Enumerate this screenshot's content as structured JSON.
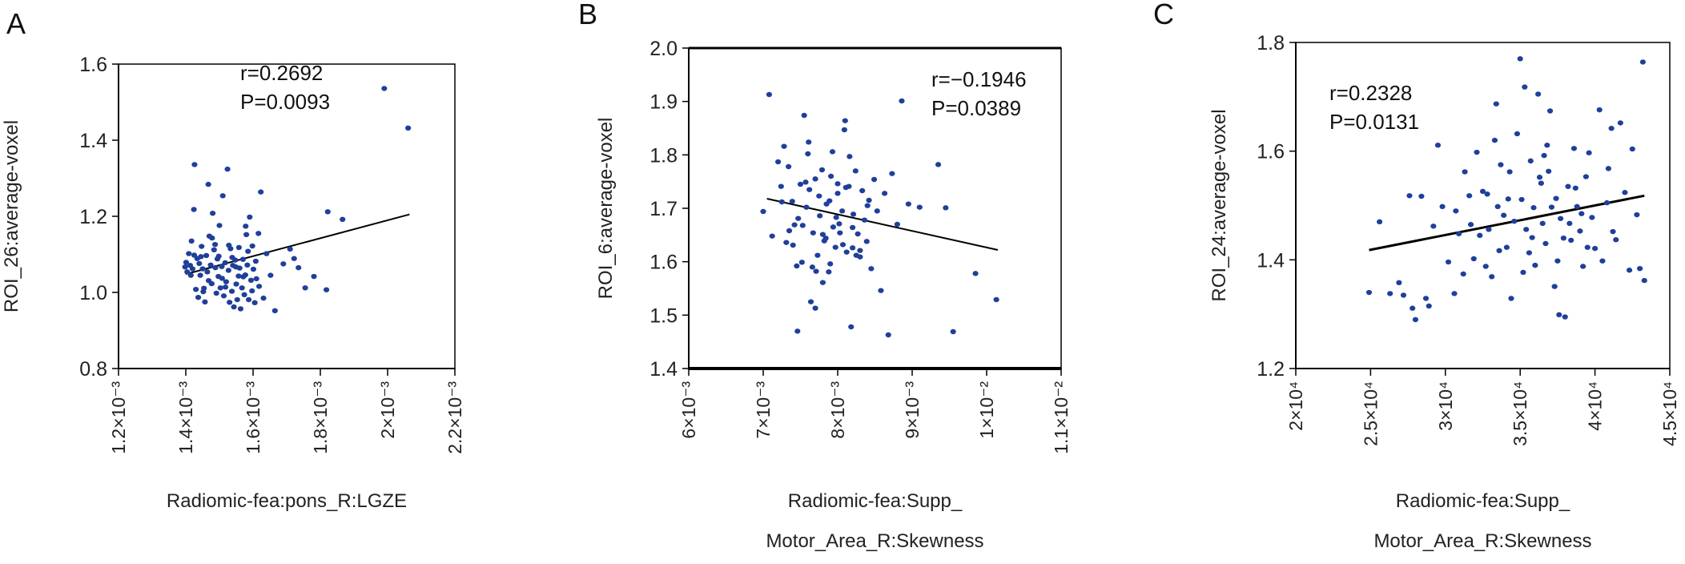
{
  "chart_data": [
    {
      "panel": "A",
      "type": "scatter",
      "ylabel": "ROI_26:average-voxel",
      "xlabel_lines": [
        "Radiomic-fea:pons_R:LGZE"
      ],
      "xlim": [
        0.0012,
        0.0022
      ],
      "ylim": [
        0.8,
        1.6
      ],
      "x_ticks": [
        0.0012,
        0.0014,
        0.0016,
        0.0018,
        0.002,
        0.0022
      ],
      "x_tick_labels": [
        "1.2×10⁻³",
        "1.4×10⁻³",
        "1.6×10⁻³",
        "1.8×10⁻³",
        "2×10⁻³",
        "2.2×10⁻³"
      ],
      "y_ticks": [
        0.8,
        1.0,
        1.2,
        1.4,
        1.6
      ],
      "y_tick_labels": [
        "0.8",
        "1.0",
        "1.2",
        "1.4",
        "1.6"
      ],
      "annotation": [
        "r=0.2692",
        "P=0.0093"
      ],
      "fit_line": [
        [
          0.0014,
          1.048
        ],
        [
          0.002065,
          1.205
        ]
      ],
      "points": [
        [
          0.001398,
          1.067
        ],
        [
          0.001401,
          1.079
        ],
        [
          0.001404,
          1.054
        ],
        [
          0.001409,
          1.102
        ],
        [
          0.001413,
          1.071
        ],
        [
          0.001417,
          1.135
        ],
        [
          0.00142,
          1.062
        ],
        [
          0.001424,
          1.218
        ],
        [
          0.001426,
          1.336
        ],
        [
          0.00143,
          1.008
        ],
        [
          0.001434,
          1.089
        ],
        [
          0.001437,
          0.987
        ],
        [
          0.00144,
          1.076
        ],
        [
          0.001443,
          1.045
        ],
        [
          0.001447,
          1.121
        ],
        [
          0.00145,
          1.062
        ],
        [
          0.001454,
          1.011
        ],
        [
          0.001457,
          0.975
        ],
        [
          0.001461,
          1.097
        ],
        [
          0.001464,
          1.054
        ],
        [
          0.001467,
          1.284
        ],
        [
          0.00147,
          1.148
        ],
        [
          0.001474,
          1.072
        ],
        [
          0.001477,
          1.023
        ],
        [
          0.00148,
          1.208
        ],
        [
          0.001484,
          1.112
        ],
        [
          0.001488,
          1.065
        ],
        [
          0.001491,
          0.998
        ],
        [
          0.001494,
          1.088
        ],
        [
          0.001497,
          1.042
        ],
        [
          0.0015,
          1.176
        ],
        [
          0.001503,
          1.012
        ],
        [
          0.001507,
          1.068
        ],
        [
          0.00151,
          1.254
        ],
        [
          0.001513,
          0.991
        ],
        [
          0.001517,
          1.078
        ],
        [
          0.00152,
          1.028
        ],
        [
          0.001524,
          1.324
        ],
        [
          0.001527,
          1.058
        ],
        [
          0.00153,
          0.974
        ],
        [
          0.001533,
          1.115
        ],
        [
          0.001537,
          1.003
        ],
        [
          0.00154,
          1.071
        ],
        [
          0.001543,
          0.962
        ],
        [
          0.001547,
          1.085
        ],
        [
          0.00155,
          1.022
        ],
        [
          0.001553,
          0.981
        ],
        [
          0.001557,
          1.043
        ],
        [
          0.00156,
          1.064
        ],
        [
          0.001563,
          0.957
        ],
        [
          0.001567,
          1.012
        ],
        [
          0.00157,
          1.087
        ],
        [
          0.001574,
          0.994
        ],
        [
          0.001577,
          1.046
        ],
        [
          0.00158,
          1.152
        ],
        [
          0.001583,
          1.072
        ],
        [
          0.001587,
          0.981
        ],
        [
          0.00159,
          1.198
        ],
        [
          0.001594,
          1.032
        ],
        [
          0.001597,
          1.004
        ],
        [
          0.001601,
          1.061
        ],
        [
          0.001605,
          0.973
        ],
        [
          0.00161,
          1.036
        ],
        [
          0.001616,
          1.155
        ],
        [
          0.001623,
          1.264
        ],
        [
          0.001631,
          0.985
        ],
        [
          0.00164,
          1.102
        ],
        [
          0.001652,
          1.045
        ],
        [
          0.001665,
          0.952
        ],
        [
          0.00169,
          1.075
        ],
        [
          0.00171,
          1.114
        ],
        [
          0.001722,
          1.089
        ],
        [
          0.001735,
          1.065
        ],
        [
          0.001755,
          1.012
        ],
        [
          0.001781,
          1.042
        ],
        [
          0.001818,
          1.007
        ],
        [
          0.001822,
          1.212
        ],
        [
          0.001866,
          1.192
        ],
        [
          0.00199,
          1.536
        ],
        [
          0.002061,
          1.432
        ],
        [
          0.001415,
          1.045
        ],
        [
          0.001445,
          1.094
        ],
        [
          0.001468,
          1.031
        ],
        [
          0.001487,
          1.126
        ],
        [
          0.001508,
          1.037
        ],
        [
          0.001528,
          1.124
        ],
        [
          0.001549,
          1.067
        ],
        [
          0.001571,
          1.041
        ],
        [
          0.001585,
          1.108
        ],
        [
          0.001608,
          1.082
        ],
        [
          0.001425,
          1.098
        ],
        [
          0.001452,
          1.002
        ],
        [
          0.001478,
          1.143
        ],
        [
          0.001498,
          1.095
        ],
        [
          0.001518,
          1.014
        ],
        [
          0.001538,
          1.092
        ],
        [
          0.001558,
          1.118
        ],
        [
          0.001578,
          1.174
        ],
        [
          0.001598,
          1.122
        ],
        [
          0.001618,
          1.016
        ]
      ]
    },
    {
      "panel": "B",
      "type": "scatter",
      "ylabel": "ROI_6:average-voxel",
      "xlabel_lines": [
        "Radiomic-fea:Supp_",
        "Motor_Area_R:Skewness"
      ],
      "xlim": [
        0.006,
        0.011
      ],
      "ylim": [
        1.4,
        2.0
      ],
      "x_ticks": [
        0.006,
        0.007,
        0.008,
        0.009,
        0.01,
        0.011
      ],
      "x_tick_labels": [
        "6×10⁻³",
        "7×10⁻³",
        "8×10⁻³",
        "9×10⁻³",
        "1×10⁻²",
        "1.1×10⁻²"
      ],
      "y_ticks": [
        1.4,
        1.5,
        1.6,
        1.7,
        1.8,
        1.9,
        2.0
      ],
      "y_tick_labels": [
        "1.4",
        "1.5",
        "1.6",
        "1.7",
        "1.8",
        "1.9",
        "2.0"
      ],
      "annotation": [
        "r=−0.1946",
        "P=0.0389"
      ],
      "fit_line": [
        [
          0.00705,
          1.718
        ],
        [
          0.01015,
          1.622
        ]
      ],
      "points": [
        [
          0.007,
          1.694
        ],
        [
          0.00708,
          1.913
        ],
        [
          0.00712,
          1.648
        ],
        [
          0.0072,
          1.787
        ],
        [
          0.00724,
          1.741
        ],
        [
          0.00728,
          1.816
        ],
        [
          0.00731,
          1.636
        ],
        [
          0.00735,
          1.658
        ],
        [
          0.00739,
          1.713
        ],
        [
          0.00742,
          1.669
        ],
        [
          0.00746,
          1.47
        ],
        [
          0.0075,
          1.745
        ],
        [
          0.00752,
          1.599
        ],
        [
          0.00755,
          1.874
        ],
        [
          0.00758,
          1.702
        ],
        [
          0.00761,
          1.824
        ],
        [
          0.00764,
          1.525
        ],
        [
          0.00767,
          1.654
        ],
        [
          0.0077,
          1.755
        ],
        [
          0.00773,
          1.612
        ],
        [
          0.00776,
          1.686
        ],
        [
          0.00779,
          1.772
        ],
        [
          0.00782,
          1.639
        ],
        [
          0.00785,
          1.708
        ],
        [
          0.00788,
          1.581
        ],
        [
          0.00791,
          1.76
        ],
        [
          0.00794,
          1.665
        ],
        [
          0.00797,
          1.627
        ],
        [
          0.008,
          1.728
        ],
        [
          0.00803,
          1.654
        ],
        [
          0.00806,
          1.695
        ],
        [
          0.00809,
          1.847
        ],
        [
          0.00812,
          1.618
        ],
        [
          0.00815,
          1.741
        ],
        [
          0.00818,
          1.478
        ],
        [
          0.00821,
          1.689
        ],
        [
          0.00824,
          1.77
        ],
        [
          0.00827,
          1.652
        ],
        [
          0.0083,
          1.609
        ],
        [
          0.00833,
          1.733
        ],
        [
          0.00836,
          1.678
        ],
        [
          0.00839,
          1.638
        ],
        [
          0.00842,
          1.715
        ],
        [
          0.00845,
          1.587
        ],
        [
          0.00849,
          1.754
        ],
        [
          0.00853,
          1.695
        ],
        [
          0.00858,
          1.546
        ],
        [
          0.00863,
          1.728
        ],
        [
          0.00868,
          1.463
        ],
        [
          0.00873,
          1.765
        ],
        [
          0.0088,
          1.67
        ],
        [
          0.00886,
          1.901
        ],
        [
          0.00895,
          1.708
        ],
        [
          0.0091,
          1.702
        ],
        [
          0.00935,
          1.782
        ],
        [
          0.00945,
          1.701
        ],
        [
          0.00955,
          1.469
        ],
        [
          0.00985,
          1.578
        ],
        [
          0.01013,
          1.529
        ],
        [
          0.00725,
          1.712
        ],
        [
          0.00745,
          1.592
        ],
        [
          0.00753,
          1.668
        ],
        [
          0.00762,
          1.735
        ],
        [
          0.00771,
          1.582
        ],
        [
          0.0078,
          1.651
        ],
        [
          0.00789,
          1.714
        ],
        [
          0.00798,
          1.683
        ],
        [
          0.00807,
          1.632
        ],
        [
          0.00816,
          1.797
        ],
        [
          0.00825,
          1.612
        ],
        [
          0.00734,
          1.778
        ],
        [
          0.00747,
          1.681
        ],
        [
          0.00757,
          1.749
        ],
        [
          0.00766,
          1.59
        ],
        [
          0.00775,
          1.723
        ],
        [
          0.00784,
          1.644
        ],
        [
          0.00793,
          1.806
        ],
        [
          0.00802,
          1.671
        ],
        [
          0.00811,
          1.739
        ],
        [
          0.0082,
          1.664
        ],
        [
          0.0074,
          1.631
        ],
        [
          0.0076,
          1.802
        ],
        [
          0.0078,
          1.561
        ],
        [
          0.008,
          1.746
        ],
        [
          0.0082,
          1.626
        ],
        [
          0.0084,
          1.705
        ],
        [
          0.0077,
          1.513
        ],
        [
          0.0079,
          1.596
        ],
        [
          0.0081,
          1.864
        ],
        [
          0.0083,
          1.621
        ]
      ]
    },
    {
      "panel": "C",
      "type": "scatter",
      "ylabel": "ROI_24:average-voxel",
      "xlabel_lines": [
        "Radiomic-fea:Supp_",
        "Motor_Area_R:Skewness"
      ],
      "xlim": [
        20000,
        45000
      ],
      "ylim": [
        1.2,
        1.8
      ],
      "x_ticks": [
        20000,
        25000,
        30000,
        35000,
        40000,
        45000
      ],
      "x_tick_labels": [
        "2×10⁴",
        "2.5×10⁴",
        "3×10⁴",
        "3.5×10⁴",
        "4×10⁴",
        "4.5×10⁴"
      ],
      "y_ticks": [
        1.2,
        1.4,
        1.6,
        1.8
      ],
      "y_tick_labels": [
        "1.2",
        "1.4",
        "1.6",
        "1.8"
      ],
      "annotation": [
        "r=0.2328",
        "P=0.0131"
      ],
      "fit_line": [
        [
          24900,
          1.418
        ],
        [
          43300,
          1.518
        ]
      ],
      "points": [
        [
          24900,
          1.34
        ],
        [
          25600,
          1.47
        ],
        [
          26300,
          1.338
        ],
        [
          26900,
          1.358
        ],
        [
          27200,
          1.335
        ],
        [
          27600,
          1.518
        ],
        [
          27800,
          1.311
        ],
        [
          28000,
          1.29
        ],
        [
          28400,
          1.517
        ],
        [
          28700,
          1.329
        ],
        [
          28900,
          1.315
        ],
        [
          29200,
          1.462
        ],
        [
          29500,
          1.611
        ],
        [
          29800,
          1.498
        ],
        [
          30200,
          1.396
        ],
        [
          30600,
          1.338
        ],
        [
          30900,
          1.448
        ],
        [
          31200,
          1.374
        ],
        [
          31300,
          1.562
        ],
        [
          31600,
          1.518
        ],
        [
          31700,
          1.465
        ],
        [
          31900,
          1.402
        ],
        [
          32100,
          1.598
        ],
        [
          32300,
          1.445
        ],
        [
          32500,
          1.526
        ],
        [
          32700,
          1.388
        ],
        [
          32900,
          1.456
        ],
        [
          33100,
          1.369
        ],
        [
          33300,
          1.62
        ],
        [
          33400,
          1.687
        ],
        [
          33500,
          1.498
        ],
        [
          33700,
          1.575
        ],
        [
          33900,
          1.482
        ],
        [
          34100,
          1.423
        ],
        [
          34300,
          1.562
        ],
        [
          34400,
          1.329
        ],
        [
          34600,
          1.471
        ],
        [
          34800,
          1.632
        ],
        [
          35000,
          1.77
        ],
        [
          35100,
          1.511
        ],
        [
          35300,
          1.718
        ],
        [
          35400,
          1.456
        ],
        [
          35600,
          1.413
        ],
        [
          35700,
          1.582
        ],
        [
          35900,
          1.496
        ],
        [
          36000,
          1.39
        ],
        [
          36200,
          1.705
        ],
        [
          36300,
          1.552
        ],
        [
          36500,
          1.467
        ],
        [
          36700,
          1.43
        ],
        [
          36800,
          1.611
        ],
        [
          37000,
          1.674
        ],
        [
          37100,
          1.497
        ],
        [
          37300,
          1.351
        ],
        [
          37400,
          1.513
        ],
        [
          37600,
          1.299
        ],
        [
          37700,
          1.476
        ],
        [
          37900,
          1.44
        ],
        [
          38000,
          1.295
        ],
        [
          38200,
          1.535
        ],
        [
          38400,
          1.436
        ],
        [
          38600,
          1.605
        ],
        [
          38800,
          1.498
        ],
        [
          39000,
          1.453
        ],
        [
          39200,
          1.388
        ],
        [
          39400,
          1.553
        ],
        [
          39600,
          1.597
        ],
        [
          39800,
          1.478
        ],
        [
          40000,
          1.421
        ],
        [
          40300,
          1.676
        ],
        [
          40500,
          1.398
        ],
        [
          40800,
          1.505
        ],
        [
          41100,
          1.642
        ],
        [
          41400,
          1.437
        ],
        [
          41700,
          1.652
        ],
        [
          42000,
          1.524
        ],
        [
          42300,
          1.381
        ],
        [
          42500,
          1.604
        ],
        [
          42800,
          1.483
        ],
        [
          43000,
          1.384
        ],
        [
          43200,
          1.764
        ],
        [
          43300,
          1.362
        ],
        [
          34200,
          1.512
        ],
        [
          35800,
          1.441
        ],
        [
          36900,
          1.563
        ],
        [
          38300,
          1.467
        ],
        [
          39500,
          1.423
        ],
        [
          40900,
          1.568
        ],
        [
          33600,
          1.417
        ],
        [
          36400,
          1.541
        ],
        [
          37500,
          1.398
        ],
        [
          39100,
          1.485
        ],
        [
          41200,
          1.452
        ],
        [
          35200,
          1.377
        ],
        [
          32800,
          1.521
        ],
        [
          30700,
          1.49
        ],
        [
          36600,
          1.592
        ],
        [
          38700,
          1.532
        ]
      ]
    }
  ]
}
